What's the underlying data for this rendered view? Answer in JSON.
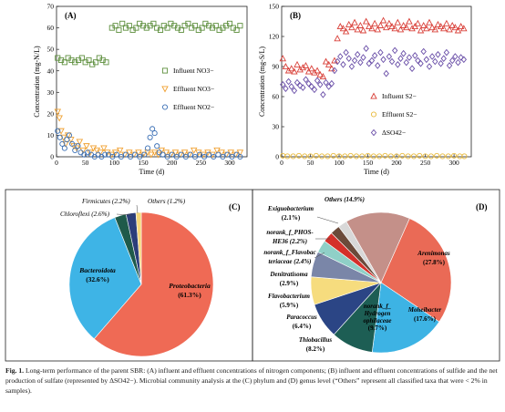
{
  "colors": {
    "influent_no3": "#5e8f3e",
    "effluent_no3": "#f0a030",
    "effluent_no2": "#3a6fb5",
    "influent_s": "#d9413a",
    "effluent_s": "#e8b93a",
    "delta_so4": "#6a4fa8",
    "proteobacteria": "#ef6a55",
    "bacteroidota": "#3eb4e6",
    "chloroflexi": "#1f5a4a",
    "firmicutes": "#2c3e7a",
    "others_phylum": "#f5d77a"
  },
  "chart_data": [
    {
      "id": "A",
      "type": "scatter",
      "panel_label": "(A)",
      "xlabel": "Time (d)",
      "ylabel": "Concentration (mg-N/L)",
      "xlim": [
        0,
        330
      ],
      "ylim": [
        0,
        70
      ],
      "xticks": [
        0,
        50,
        100,
        150,
        200,
        250,
        300
      ],
      "yticks": [
        0,
        10,
        20,
        30,
        40,
        50,
        60,
        70
      ],
      "legend_position": "right",
      "series": [
        {
          "name": "Influent NO3−",
          "marker": "square",
          "color": "#5e8f3e",
          "x": [
            2,
            8,
            14,
            20,
            26,
            32,
            38,
            44,
            50,
            56,
            62,
            68,
            74,
            80,
            86,
            96,
            102,
            108,
            114,
            120,
            126,
            132,
            138,
            144,
            150,
            156,
            162,
            168,
            174,
            180,
            186,
            192,
            198,
            204,
            210,
            216,
            222,
            228,
            234,
            240,
            246,
            252,
            258,
            264,
            270,
            276,
            282,
            288,
            294,
            300,
            306,
            312,
            318
          ],
          "y": [
            46,
            45,
            44,
            46,
            45,
            44,
            45,
            46,
            44,
            45,
            43,
            44,
            46,
            45,
            44,
            60,
            61,
            59,
            62,
            60,
            61,
            59,
            60,
            62,
            61,
            60,
            61,
            62,
            60,
            59,
            61,
            60,
            62,
            61,
            60,
            59,
            61,
            62,
            60,
            61,
            59,
            60,
            62,
            61,
            60,
            61,
            59,
            60,
            61,
            62,
            60,
            59,
            61
          ]
        },
        {
          "name": "Effluent NO3−",
          "marker": "triangle-down",
          "color": "#f0a030",
          "x": [
            2,
            5,
            8,
            12,
            16,
            20,
            25,
            30,
            35,
            40,
            46,
            52,
            58,
            64,
            70,
            76,
            82,
            88,
            95,
            102,
            110,
            118,
            126,
            134,
            142,
            150,
            158,
            164,
            170,
            176,
            182,
            190,
            198,
            206,
            214,
            222,
            230,
            238,
            246,
            254,
            262,
            270,
            278,
            286,
            294,
            302,
            310,
            318
          ],
          "y": [
            21,
            18,
            12,
            9,
            6,
            10,
            8,
            5,
            4,
            7,
            3,
            5,
            2,
            4,
            3,
            2,
            4,
            2,
            1,
            2,
            3,
            1,
            2,
            1,
            2,
            1,
            2,
            1,
            2,
            1,
            3,
            2,
            1,
            2,
            1,
            2,
            1,
            3,
            2,
            1,
            2,
            1,
            3,
            2,
            1,
            2,
            1,
            2
          ]
        },
        {
          "name": "Effluent NO2−",
          "marker": "circle",
          "color": "#3a6fb5",
          "x": [
            2,
            6,
            10,
            14,
            18,
            22,
            27,
            32,
            37,
            42,
            48,
            54,
            60,
            66,
            72,
            78,
            84,
            90,
            97,
            104,
            112,
            120,
            128,
            136,
            144,
            152,
            158,
            162,
            166,
            170,
            174,
            178,
            184,
            192,
            200,
            208,
            216,
            224,
            232,
            240,
            248,
            256,
            264,
            272,
            280,
            288,
            296,
            304,
            312,
            318
          ],
          "y": [
            12,
            9,
            6,
            4,
            8,
            10,
            6,
            3,
            5,
            2,
            1,
            2,
            1,
            0,
            1,
            0,
            1,
            1,
            0,
            1,
            0,
            1,
            0,
            1,
            0,
            1,
            4,
            9,
            13,
            11,
            5,
            2,
            1,
            0,
            1,
            0,
            1,
            0,
            1,
            0,
            1,
            0,
            1,
            0,
            1,
            0,
            1,
            0,
            1,
            0
          ]
        }
      ]
    },
    {
      "id": "B",
      "type": "scatter",
      "panel_label": "(B)",
      "xlabel": "Time (d)",
      "ylabel": "Concentration (mg-S/L)",
      "xlim": [
        0,
        330
      ],
      "ylim": [
        0,
        150
      ],
      "xticks": [
        0,
        50,
        100,
        150,
        200,
        250,
        300
      ],
      "yticks": [
        0,
        30,
        60,
        90,
        120,
        150
      ],
      "legend_position": "bottom-right",
      "series": [
        {
          "name": "Influent S2−",
          "marker": "triangle-up",
          "color": "#d9413a",
          "x": [
            2,
            7,
            12,
            17,
            22,
            27,
            32,
            37,
            42,
            47,
            52,
            57,
            62,
            67,
            72,
            77,
            82,
            87,
            92,
            97,
            102,
            107,
            112,
            117,
            122,
            127,
            132,
            137,
            142,
            147,
            152,
            157,
            162,
            167,
            172,
            177,
            182,
            187,
            192,
            197,
            202,
            207,
            212,
            217,
            222,
            227,
            232,
            237,
            242,
            247,
            252,
            257,
            262,
            267,
            272,
            277,
            282,
            287,
            292,
            297,
            302,
            307,
            312,
            317
          ],
          "y": [
            98,
            90,
            86,
            88,
            85,
            92,
            87,
            89,
            91,
            85,
            88,
            84,
            86,
            82,
            80,
            95,
            92,
            88,
            96,
            118,
            130,
            128,
            125,
            132,
            129,
            134,
            127,
            131,
            126,
            135,
            130,
            128,
            133,
            127,
            131,
            136,
            129,
            133,
            130,
            128,
            134,
            127,
            131,
            129,
            135,
            128,
            130,
            133,
            126,
            131,
            128,
            134,
            129,
            127,
            132,
            130,
            128,
            133,
            127,
            131,
            129,
            126,
            130,
            128
          ]
        },
        {
          "name": "Effluent S2−",
          "marker": "circle",
          "color": "#e8b93a",
          "x": [
            2,
            10,
            20,
            30,
            40,
            50,
            60,
            70,
            80,
            90,
            100,
            110,
            120,
            130,
            140,
            150,
            160,
            170,
            180,
            190,
            200,
            210,
            220,
            230,
            240,
            250,
            260,
            270,
            280,
            290,
            300,
            310,
            318
          ],
          "y": [
            1,
            0.5,
            0.5,
            1,
            0.5,
            0.5,
            1,
            0.5,
            0.5,
            1,
            0.5,
            0.5,
            1,
            0.5,
            0.5,
            1,
            0.5,
            0.5,
            1,
            0.5,
            0.5,
            1,
            0.5,
            0.5,
            1,
            0.5,
            0.5,
            1,
            0.5,
            0.5,
            1,
            0.5,
            0.5
          ]
        },
        {
          "name": "ΔSO42−",
          "marker": "diamond",
          "color": "#6a4fa8",
          "x": [
            2,
            7,
            12,
            17,
            22,
            27,
            32,
            37,
            42,
            47,
            52,
            57,
            62,
            67,
            72,
            77,
            82,
            87,
            92,
            97,
            102,
            107,
            112,
            117,
            122,
            127,
            132,
            137,
            142,
            147,
            152,
            157,
            162,
            167,
            172,
            177,
            182,
            187,
            192,
            197,
            202,
            207,
            212,
            217,
            222,
            227,
            232,
            237,
            242,
            247,
            252,
            257,
            262,
            267,
            272,
            277,
            282,
            287,
            292,
            297,
            302,
            307,
            312,
            317
          ],
          "y": [
            72,
            68,
            75,
            70,
            66,
            74,
            71,
            69,
            77,
            73,
            70,
            67,
            76,
            72,
            62,
            74,
            70,
            73,
            86,
            95,
            100,
            92,
            104,
            98,
            90,
            96,
            102,
            94,
            99,
            108,
            93,
            96,
            101,
            91,
            104,
            97,
            83,
            100,
            95,
            106,
            92,
            98,
            103,
            94,
            99,
            88,
            101,
            96,
            93,
            105,
            97,
            90,
            100,
            95,
            102,
            93,
            98,
            104,
            91,
            96,
            100,
            94,
            99,
            97
          ]
        }
      ]
    },
    {
      "id": "C",
      "type": "pie",
      "panel_label": "(C)",
      "slices": [
        {
          "label": "Proteobacteria",
          "value": 61.3,
          "pct_text": "(61.3%)",
          "color": "#ef6a55"
        },
        {
          "label": "Bacteroidota",
          "value": 32.6,
          "pct_text": "(32.6%)",
          "color": "#3eb4e6"
        },
        {
          "label": "Chloroflexi",
          "value": 2.6,
          "pct_text": "(2.6%)",
          "color": "#1f5a4a"
        },
        {
          "label": "Firmicutes",
          "value": 2.2,
          "pct_text": "(2.2%)",
          "color": "#2c3e7a"
        },
        {
          "label": "Others",
          "value": 1.2,
          "pct_text": "(1.2%)",
          "color": "#f5d77a"
        }
      ]
    },
    {
      "id": "D",
      "type": "pie",
      "panel_label": "(D)",
      "slices": [
        {
          "label": "Arenimonas",
          "value": 27.8,
          "pct_text": "(27.8%)",
          "color": "#ea6a56"
        },
        {
          "label": "Moheibacter",
          "value": 17.6,
          "pct_text": "(17.6%)",
          "color": "#3db3e4"
        },
        {
          "label": "norank_f_Hydrogenophilaceae",
          "value": 9.7,
          "pct_text": "(9.7%)",
          "color": "#1d5e54"
        },
        {
          "label": "Thiobacillus",
          "value": 8.2,
          "pct_text": "(8.2%)",
          "color": "#2b4585"
        },
        {
          "label": "Paracoccus",
          "value": 6.4,
          "pct_text": "(6.4%)",
          "color": "#f6dc7e"
        },
        {
          "label": "Flavobacterium",
          "value": 5.9,
          "pct_text": "(5.9%)",
          "color": "#7a86a8"
        },
        {
          "label": "Denitratisoma",
          "value": 2.9,
          "pct_text": "(2.9%)",
          "color": "#8fd0c7"
        },
        {
          "label": "norank_f_Flavobacteriaceae",
          "value": 2.4,
          "pct_text": "(2.4%)",
          "color": "#d4302a"
        },
        {
          "label": "norank_f_PHOS-HE36",
          "value": 2.2,
          "pct_text": "(2.2%)",
          "color": "#6b4a3a"
        },
        {
          "label": "Exiguobacterium",
          "value": 2.1,
          "pct_text": "(2.1%)",
          "color": "#d8d8d8"
        },
        {
          "label": "Others",
          "value": 14.9,
          "pct_text": "(14.9%)",
          "color": "#c49089"
        }
      ]
    }
  ],
  "labels_c": {
    "proteobacteria": "Proteobacteria",
    "proteobacteria_pct": "(61.3%)",
    "bacteroidota": "Bacteroidota",
    "bacteroidota_pct": "(32.6%)",
    "chloroflexi": "Chloroflexi (2.6%)",
    "firmicutes": "Firmicutes (2.2%)",
    "others": "Others (1.2%)"
  },
  "labels_d": {
    "arenimonas": "Arenimonas",
    "arenimonas_pct": "(27.8%)",
    "moheibacter": "Moheibacter",
    "moheibacter_pct": "(17.6%)",
    "hydro_1": "norank_f_",
    "hydro_2": "Hydrogen",
    "hydro_3": "ophilaceae",
    "hydro_4": "(9.7%)",
    "thiobacillus": "Thiobacillus",
    "thiobacillus_pct": "(8.2%)",
    "paracoccus": "Paracoccus",
    "paracoccus_pct": "(6.4%)",
    "flavobacterium": "Flavobacterium",
    "flavobacterium_pct": "(5.9%)",
    "denitratisoma": "Denitratisoma",
    "denitratisoma_pct": "(2.9%)",
    "flavobac_1": "norank_f_Flavobac",
    "flavobac_2": "teriaceae (2.4%)",
    "phos_1": "norank_f_PHOS-",
    "phos_2": "HE36 (2.2%)",
    "exiguo": "Exiguobacterium",
    "exiguo_pct": "(2.1%)",
    "others": "Others (14.9%)"
  },
  "caption": {
    "label": "Fig. 1.",
    "text": " Long-term performance of the parent SBR: (A) influent and effluent concentrations of nitrogen components; (B) influent and effluent concentrations of sulfide and the net production of sulfate (represented by ΔSO42−). Microbial community analysis at the (C) phylum and (D) genus level (“Others” represent all classified taxa that were < 2% in samples)."
  }
}
